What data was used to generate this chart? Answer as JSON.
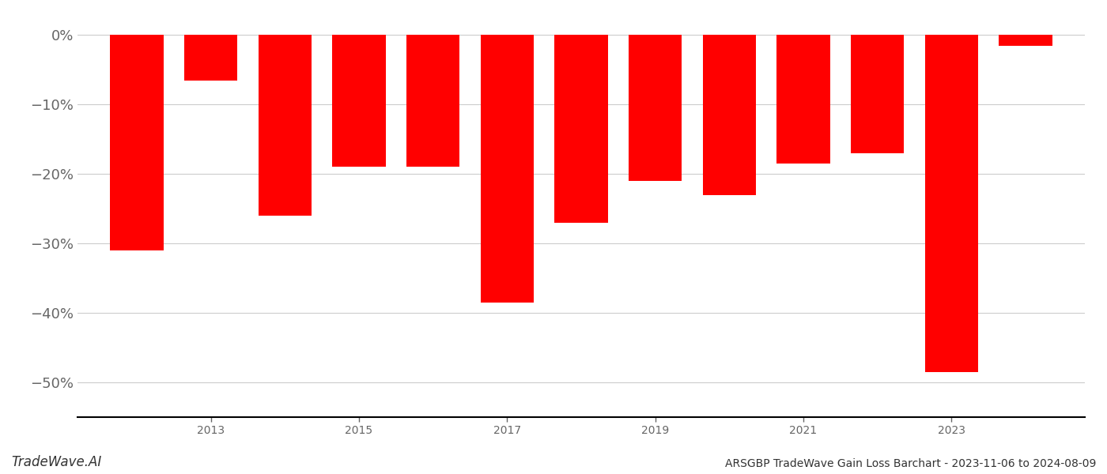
{
  "title": "ARSGBP TradeWave Gain Loss Barchart - 2023-11-06 to 2024-08-09",
  "watermark": "TradeWave.AI",
  "bar_color": "#ff0000",
  "background_color": "#ffffff",
  "grid_color": "#cccccc",
  "text_color": "#666666",
  "years": [
    2012,
    2013,
    2014,
    2015,
    2016,
    2017,
    2018,
    2019,
    2020,
    2021,
    2022,
    2023,
    2024
  ],
  "values": [
    -31.0,
    -6.5,
    -26.0,
    -19.0,
    -19.0,
    -38.5,
    -27.0,
    -21.0,
    -23.0,
    -18.5,
    -17.0,
    -48.5,
    -1.5
  ],
  "ylim": [
    -55,
    3
  ],
  "yticks": [
    0,
    -10,
    -20,
    -30,
    -40,
    -50
  ],
  "ytick_labels": [
    "0%",
    "−10%",
    "−20%",
    "−30%",
    "−40%",
    "−50%"
  ],
  "xticks": [
    2013,
    2015,
    2017,
    2019,
    2021,
    2023
  ],
  "bar_width": 0.72,
  "title_fontsize": 10,
  "tick_fontsize": 13,
  "watermark_fontsize": 12,
  "axes_linewidth": 1.5,
  "xlim_left": 2011.2,
  "xlim_right": 2024.8
}
